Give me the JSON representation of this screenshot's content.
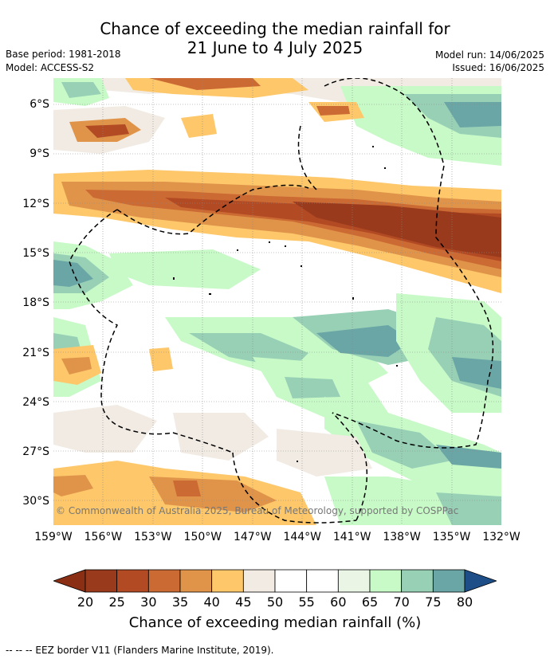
{
  "title_line1": "Chance of exceeding the median rainfall for",
  "title_line2": "21 June to 4 July 2025",
  "base_period": "Base period: 1981-2018",
  "model": "Model: ACCESS-S2",
  "model_run": "Model run: 14/06/2025",
  "issued": "Issued: 16/06/2025",
  "copyright": "© Commonwealth of Australia 2025, Bureau of Meteorology, supported by COSPPac",
  "x_ticks": [
    "159°W",
    "156°W",
    "153°W",
    "150°W",
    "147°W",
    "144°W",
    "141°W",
    "138°W",
    "135°W",
    "132°W"
  ],
  "y_ticks": [
    "6°S",
    "9°S",
    "12°S",
    "15°S",
    "18°S",
    "21°S",
    "24°S",
    "27°S",
    "30°S"
  ],
  "colorbar": {
    "labels": [
      "20",
      "25",
      "30",
      "35",
      "40",
      "45",
      "50",
      "55",
      "60",
      "65",
      "70",
      "75",
      "80"
    ],
    "colors": [
      "#9a3a1c",
      "#b24a24",
      "#cc6a34",
      "#e0944a",
      "#fdc76a",
      "#f1ebe3",
      "#ffffff",
      "#ffffff",
      "#eaf5e6",
      "#c8fac8",
      "#98d0b6",
      "#6aa6a6",
      "#457c98"
    ],
    "low_color": "#8a2e14",
    "high_color": "#1e4e88",
    "title": "Chance of exceeding median rainfall (%)"
  },
  "footer": "--  --  -- EEZ border V11 (Flanders Marine Institute, 2019)."
}
